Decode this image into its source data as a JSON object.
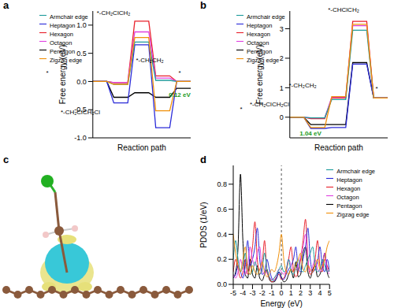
{
  "chart_data": [
    {
      "type": "line",
      "title": "a",
      "xlabel": "Reaction path",
      "ylabel": "Free energy (eV)",
      "categories": [
        "*",
        "*-CH₂ClCH₂Cl",
        "*-CH₂ClCH₂",
        "*-CH₂CH₂",
        "*"
      ],
      "series": [
        {
          "name": "Pentagon",
          "color": "#000000",
          "values": [
            0,
            -0.28,
            -0.2,
            -0.28,
            -0.12
          ]
        },
        {
          "name": "Hexagon",
          "color": "#e8202a",
          "values": [
            0,
            -0.02,
            1.07,
            0.1,
            0
          ]
        },
        {
          "name": "Heptagon",
          "color": "#2b2bd8",
          "values": [
            0,
            -0.38,
            0.65,
            -0.82,
            0
          ]
        },
        {
          "name": "Octagon",
          "color": "#e040e0",
          "values": [
            0,
            -0.02,
            0.88,
            0.06,
            0
          ]
        },
        {
          "name": "Armchair edge",
          "color": "#1f9c9c",
          "values": [
            0,
            -0.05,
            0.7,
            0.02,
            0
          ]
        },
        {
          "name": "Zigzag edge",
          "color": "#f0900a",
          "values": [
            0,
            -0.05,
            0.78,
            -0.52,
            0
          ]
        }
      ],
      "ylim": [
        -1.0,
        1.25
      ],
      "yticks": [
        {
          "value": -1,
          "label": "-1.0"
        },
        {
          "value": -0.5,
          "label": "-0.5"
        },
        {
          "value": 0,
          "label": "0.0"
        },
        {
          "value": 0.5,
          "label": "0.5"
        },
        {
          "value": 1,
          "label": "1.0"
        }
      ],
      "legend": "upper left",
      "tick_labels": "y",
      "grid": false,
      "annotations": [
        "0.12 eV"
      ]
    },
    {
      "type": "line",
      "title": "b",
      "xlabel": "Reaction path",
      "ylabel": "Free energy (eV)",
      "categories": [
        "*",
        "*-CH₂ClCH₂Cl",
        "*-CH₂CH₂",
        "*-CHClCH₂",
        "*"
      ],
      "series": [
        {
          "name": "Pentagon",
          "color": "#000000",
          "values": [
            0,
            -0.25,
            -0.25,
            1.85,
            0.65
          ]
        },
        {
          "name": "Hexagon",
          "color": "#e8202a",
          "values": [
            0,
            -0.05,
            0.65,
            3.25,
            0.65
          ]
        },
        {
          "name": "Heptagon",
          "color": "#2b2bd8",
          "values": [
            0,
            -0.38,
            -0.35,
            1.8,
            0.65
          ]
        },
        {
          "name": "Octagon",
          "color": "#e040e0",
          "values": [
            0,
            -0.02,
            0.68,
            3.1,
            0.65
          ]
        },
        {
          "name": "Armchair edge",
          "color": "#1f9c9c",
          "values": [
            0,
            -0.02,
            0.6,
            2.95,
            0.65
          ]
        },
        {
          "name": "Zigzag edge",
          "color": "#f0900a",
          "values": [
            0,
            -0.35,
            0.7,
            3.15,
            0.65
          ]
        }
      ],
      "ylim": [
        -0.7,
        3.6
      ],
      "yticks": [
        0,
        1,
        2,
        3
      ],
      "legend": "upper left",
      "tick_labels": "y",
      "grid": false,
      "annotations": [
        "1.04 eV"
      ]
    },
    {
      "type": "line",
      "title": "d",
      "xlabel": "Energy (eV)",
      "ylabel": "PDOS (1/eV)",
      "x": [
        -5,
        -4.75,
        -4.5,
        -4.25,
        -4,
        -3.75,
        -3.5,
        -3.25,
        -3,
        -2.75,
        -2.5,
        -2.25,
        -2,
        -1.75,
        -1.5,
        -1.25,
        -1,
        -0.75,
        -0.5,
        -0.25,
        0,
        0.25,
        0.5,
        0.75,
        1,
        1.25,
        1.5,
        1.75,
        2,
        2.25,
        2.5,
        2.75,
        3,
        3.25,
        3.5,
        3.75,
        4,
        4.25,
        4.5,
        4.75,
        5
      ],
      "series": [
        {
          "name": "Pentagon",
          "color": "#000000",
          "values": [
            0.05,
            0.1,
            0.3,
            0.88,
            0.35,
            0.08,
            0.05,
            0.2,
            0.08,
            0.05,
            0.15,
            0.05,
            0.03,
            0.08,
            0.12,
            0.04,
            0.02,
            0.02,
            0.05,
            0.1,
            0.06,
            0.02,
            0.03,
            0.08,
            0.12,
            0.05,
            0.18,
            0.06,
            0.08,
            0.25,
            0.3,
            0.1,
            0.05,
            0.12,
            0.15,
            0.06,
            0.08,
            0.15,
            0.25,
            0.1,
            0.05
          ]
        },
        {
          "name": "Hexagon",
          "color": "#e8202a",
          "values": [
            0.1,
            0.2,
            0.12,
            0.05,
            0.1,
            0.2,
            0.08,
            0.15,
            0.3,
            0.5,
            0.2,
            0.08,
            0.15,
            0.35,
            0.1,
            0.05,
            0.02,
            0.03,
            0.06,
            0.08,
            0.04,
            0.05,
            0.1,
            0.2,
            0.3,
            0.12,
            0.06,
            0.1,
            0.2,
            0.35,
            0.52,
            0.2,
            0.08,
            0.1,
            0.2,
            0.35,
            0.15,
            0.1,
            0.2,
            0.15,
            0.1
          ]
        },
        {
          "name": "Heptagon",
          "color": "#2b2bd8",
          "values": [
            0.05,
            0.08,
            0.15,
            0.1,
            0.05,
            0.15,
            0.35,
            0.15,
            0.2,
            0.3,
            0.45,
            0.2,
            0.08,
            0.1,
            0.2,
            0.12,
            0.05,
            0.03,
            0.05,
            0.1,
            0.05,
            0.04,
            0.08,
            0.12,
            0.15,
            0.2,
            0.3,
            0.12,
            0.1,
            0.2,
            0.3,
            0.45,
            0.2,
            0.1,
            0.12,
            0.18,
            0.3,
            0.15,
            0.1,
            0.2,
            0.1
          ]
        },
        {
          "name": "Octagon",
          "color": "#e040e0",
          "values": [
            0.08,
            0.05,
            0.1,
            0.2,
            0.12,
            0.08,
            0.15,
            0.3,
            0.2,
            0.15,
            0.25,
            0.3,
            0.12,
            0.08,
            0.1,
            0.06,
            0.04,
            0.05,
            0.08,
            0.12,
            0.1,
            0.08,
            0.12,
            0.2,
            0.15,
            0.1,
            0.12,
            0.15,
            0.22,
            0.3,
            0.4,
            0.2,
            0.1,
            0.15,
            0.2,
            0.12,
            0.1,
            0.15,
            0.25,
            0.12,
            0.08
          ]
        },
        {
          "name": "Armchair edge",
          "color": "#1f9c9c",
          "values": [
            0.2,
            0.35,
            0.2,
            0.1,
            0.15,
            0.25,
            0.12,
            0.08,
            0.1,
            0.18,
            0.12,
            0.08,
            0.12,
            0.25,
            0.12,
            0.06,
            0.03,
            0.05,
            0.08,
            0.12,
            0.15,
            0.1,
            0.12,
            0.2,
            0.1,
            0.08,
            0.15,
            0.2,
            0.12,
            0.1,
            0.15,
            0.2,
            0.25,
            0.3,
            0.15,
            0.1,
            0.12,
            0.2,
            0.15,
            0.1,
            0.12
          ]
        },
        {
          "name": "Zigzag edge",
          "color": "#f0900a",
          "values": [
            0.4,
            0.25,
            0.15,
            0.1,
            0.2,
            0.3,
            0.12,
            0.08,
            0.15,
            0.1,
            0.08,
            0.12,
            0.18,
            0.1,
            0.06,
            0.08,
            0.12,
            0.1,
            0.15,
            0.25,
            0.4,
            0.2,
            0.1,
            0.08,
            0.12,
            0.1,
            0.15,
            0.2,
            0.25,
            0.12,
            0.1,
            0.15,
            0.12,
            0.1,
            0.15,
            0.2,
            0.12,
            0.15,
            0.2,
            0.3,
            0.35
          ]
        }
      ],
      "xlim": [
        -5,
        5
      ],
      "xticks": [
        -5,
        -4,
        -3,
        -2,
        -1,
        0,
        1,
        2,
        3,
        4,
        5
      ],
      "ylim": [
        0,
        0.95
      ],
      "yticks": [
        {
          "value": 0,
          "label": "0.0"
        },
        {
          "value": 0.2,
          "label": "0.2"
        },
        {
          "value": 0.4,
          "label": "0.4"
        },
        {
          "value": 0.6,
          "label": "0.6"
        },
        {
          "value": 0.8,
          "label": "0.8"
        }
      ],
      "fermi_level": 0,
      "legend": "upper right",
      "grid": false
    }
  ],
  "image_panel": {
    "title": "c"
  }
}
